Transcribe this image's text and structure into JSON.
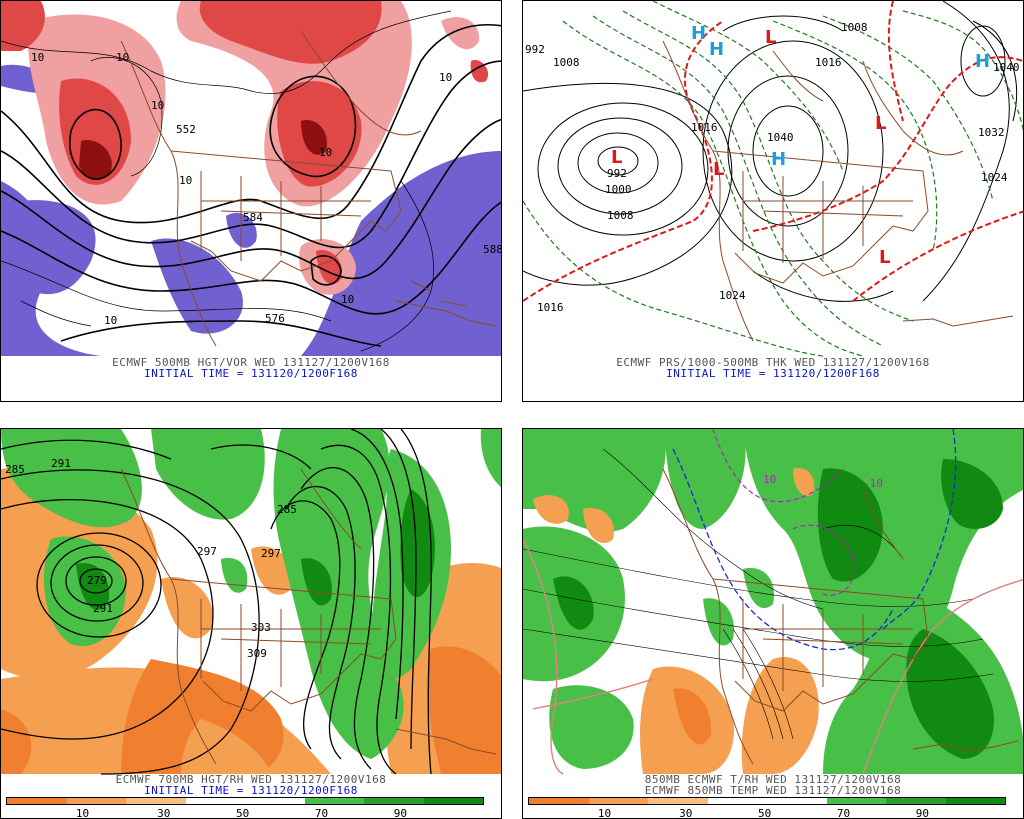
{
  "panels": [
    {
      "id": "vor500",
      "caption": "ECMWF 500MB HGT/VOR WED 131127/1200V168",
      "sub": "INITIAL TIME = 131120/1200F168",
      "labels": [
        "552",
        "584",
        "576",
        "588",
        "10",
        "10",
        "10",
        "10",
        "10",
        "10",
        "10",
        "10"
      ]
    },
    {
      "id": "prs1000",
      "caption": "ECMWF PRS/1000-500MB THK WED 131127/1200V168",
      "sub": "INITIAL TIME = 131120/1200F168",
      "labels": [
        "992",
        "1000",
        "1008",
        "1016",
        "1024",
        "1032",
        "1040",
        "1008",
        "1016",
        "1024",
        "1040",
        "1016",
        "992",
        "1008"
      ],
      "highs": [
        "H",
        "H",
        "H",
        "H"
      ],
      "lows": [
        "L",
        "L",
        "L",
        "L",
        "L"
      ]
    },
    {
      "id": "rh700",
      "caption": "ECMWF 700MB HGT/RH WED 131127/1200V168",
      "sub": "INITIAL TIME = 131120/1200F168",
      "labels": [
        "291",
        "285",
        "279",
        "297",
        "303",
        "309",
        "291",
        "297",
        "285"
      ],
      "colorbar": [
        "10",
        "30",
        "50",
        "70",
        "90"
      ]
    },
    {
      "id": "t850",
      "caption": "850MB ECMWF T/RH WED 131127/1200V168",
      "sub": "ECMWF 850MB TEMP WED 131127/1200V168",
      "labels": [
        "10",
        "-10"
      ],
      "colorbar": [
        "10",
        "30",
        "50",
        "70",
        "90"
      ]
    }
  ],
  "colors": {
    "vor_light": "#f0a0a0",
    "vor_mid": "#e04848",
    "vor_dark": "#8c1010",
    "vor_neg": "#7060d0",
    "rh_dry": "#f5a050",
    "rh_dry2": "#f08030",
    "rh_wet": "#48c048",
    "rh_wet2": "#108a10",
    "map_brown": "#8a4a2a",
    "caption_blue": "#0a14c8"
  }
}
